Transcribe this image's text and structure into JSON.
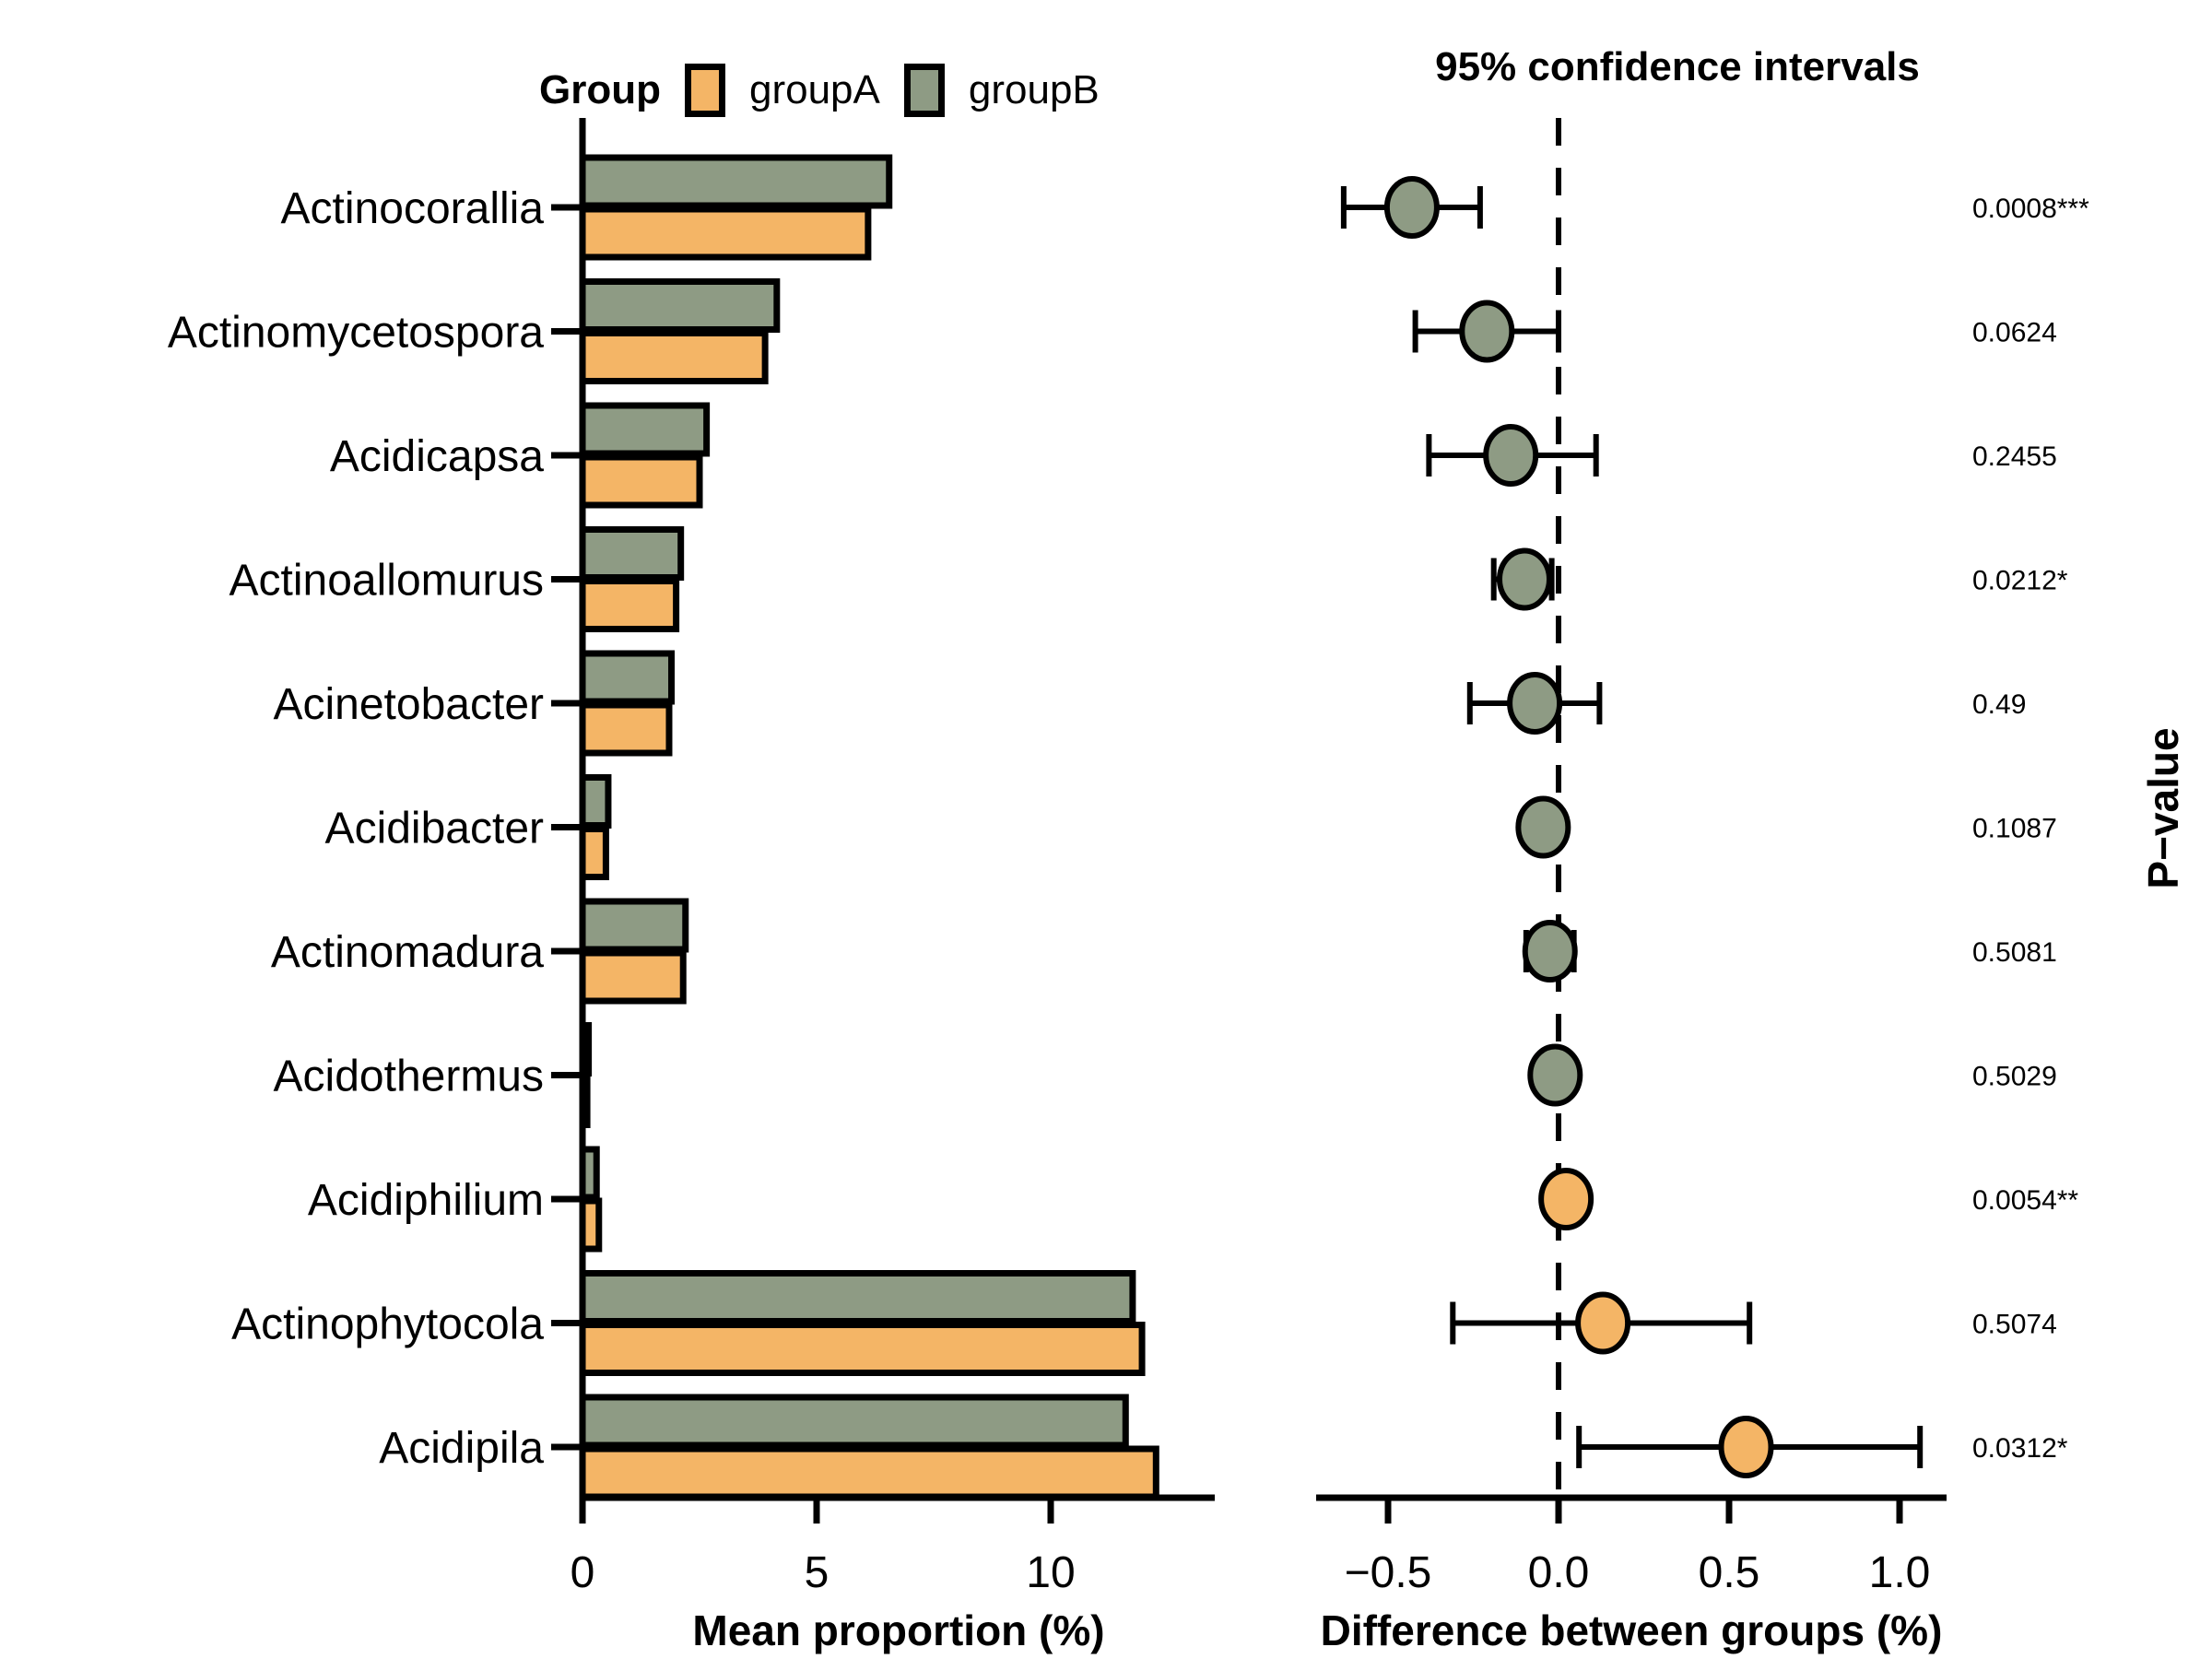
{
  "legend": {
    "title": "Group",
    "items": [
      {
        "label": "groupA",
        "color": "#F4B566"
      },
      {
        "label": "groupB",
        "color": "#8E9B84"
      }
    ]
  },
  "panels": {
    "left": {
      "xlabel": "Mean proportion (%)",
      "tick_labels": [
        "0",
        "5",
        "10"
      ]
    },
    "right": {
      "title": "95% confidence intervals",
      "xlabel": "Difference between groups (%)",
      "right_axis_label": "P−value",
      "tick_labels": [
        "−0.5",
        "0.0",
        "0.5",
        "1.0"
      ]
    }
  },
  "chart_data": [
    {
      "type": "bar",
      "orientation": "horizontal",
      "title": "Mean proportion (%)",
      "categories": [
        "Actinocorallia",
        "Actinomycetospora",
        "Acidicapsa",
        "Actinoallomurus",
        "Acinetobacter",
        "Acidibacter",
        "Actinomadura",
        "Acidothermus",
        "Acidiphilium",
        "Actinophytocola",
        "Acidipila"
      ],
      "series": [
        {
          "name": "groupA",
          "color": "#F4B566",
          "values": [
            6.1,
            3.9,
            2.5,
            2.0,
            1.85,
            0.5,
            2.15,
            0.1,
            0.35,
            11.95,
            12.25
          ]
        },
        {
          "name": "groupB",
          "color": "#8E9B84",
          "values": [
            6.55,
            4.15,
            2.65,
            2.1,
            1.9,
            0.55,
            2.2,
            0.13,
            0.3,
            11.75,
            11.6
          ]
        }
      ],
      "xlabel": "Mean proportion (%)",
      "xlim": [
        0,
        13.5
      ],
      "xticks": [
        0,
        5,
        10
      ],
      "grid": false
    },
    {
      "type": "scatter",
      "title": "95% confidence intervals",
      "categories": [
        "Actinocorallia",
        "Actinomycetospora",
        "Acidicapsa",
        "Actinoallomurus",
        "Acinetobacter",
        "Acidibacter",
        "Actinomadura",
        "Acidothermus",
        "Acidiphilium",
        "Actinophytocola",
        "Acidipila"
      ],
      "points": [
        {
          "diff": -0.43,
          "ci": [
            -0.63,
            -0.23
          ],
          "p_value": "0.0008***",
          "marker_color": "#8E9B84"
        },
        {
          "diff": -0.21,
          "ci": [
            -0.42,
            0.0
          ],
          "p_value": "0.0624",
          "marker_color": "#8E9B84"
        },
        {
          "diff": -0.14,
          "ci": [
            -0.38,
            0.11
          ],
          "p_value": "0.2455",
          "marker_color": "#8E9B84"
        },
        {
          "diff": -0.1,
          "ci": [
            -0.19,
            -0.02
          ],
          "p_value": "0.0212*",
          "marker_color": "#8E9B84"
        },
        {
          "diff": -0.07,
          "ci": [
            -0.26,
            0.12
          ],
          "p_value": "0.49",
          "marker_color": "#8E9B84"
        },
        {
          "diff": -0.045,
          "ci": [
            -0.095,
            0.005
          ],
          "p_value": "0.1087",
          "marker_color": "#8E9B84"
        },
        {
          "diff": -0.025,
          "ci": [
            -0.095,
            0.045
          ],
          "p_value": "0.5081",
          "marker_color": "#8E9B84"
        },
        {
          "diff": -0.01,
          "ci": [
            -0.03,
            0.015
          ],
          "p_value": "0.5029",
          "marker_color": "#8E9B84"
        },
        {
          "diff": 0.022,
          "ci": [
            0.0,
            0.046
          ],
          "p_value": "0.0054**",
          "marker_color": "#F4B566"
        },
        {
          "diff": 0.13,
          "ci": [
            -0.31,
            0.56
          ],
          "p_value": "0.5074",
          "marker_color": "#F4B566"
        },
        {
          "diff": 0.55,
          "ci": [
            0.06,
            1.06
          ],
          "p_value": "0.0312*",
          "marker_color": "#F4B566"
        }
      ],
      "xlabel": "Difference between groups (%)",
      "ylabel_right": "P−value",
      "xlim": [
        -0.71,
        1.14
      ],
      "xticks": [
        -0.5,
        0.0,
        0.5,
        1.0
      ],
      "zero_line": "dashed",
      "grid": false
    }
  ]
}
